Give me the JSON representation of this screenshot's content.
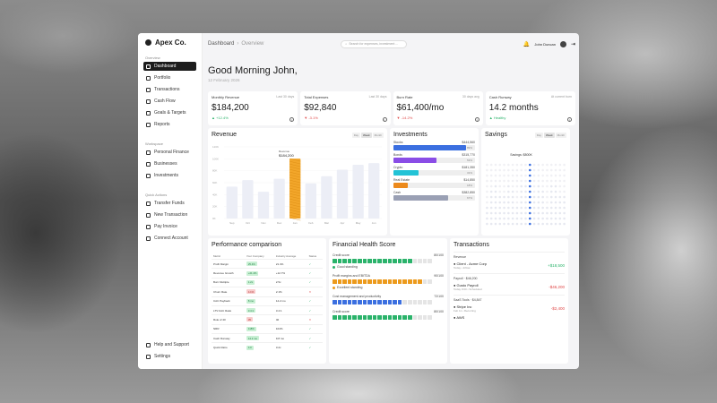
{
  "app": {
    "brand": "Apex Co."
  },
  "sidebar": {
    "overview_label": "Overview",
    "overview_items": [
      {
        "label": "Dashboard",
        "active": true
      },
      {
        "label": "Portfolio"
      },
      {
        "label": "Transactions"
      },
      {
        "label": "Cash Flow"
      },
      {
        "label": "Goals & Targets"
      },
      {
        "label": "Reports"
      }
    ],
    "workspace_label": "Workspace",
    "workspace_items": [
      {
        "label": "Personal Finance"
      },
      {
        "label": "Businesses"
      },
      {
        "label": "Investments"
      }
    ],
    "quick_label": "Quick Actions",
    "quick_items": [
      {
        "label": "Transfer Funds"
      },
      {
        "label": "New Transaction"
      },
      {
        "label": "Pay Invoice"
      },
      {
        "label": "Connect Account"
      }
    ],
    "bottom_items": [
      {
        "label": "Help and Support"
      },
      {
        "label": "Settings"
      }
    ]
  },
  "header": {
    "crumb_root": "Dashboard",
    "crumb_current": "Overview",
    "search_placeholder": "Search for expenses, investment ...",
    "user_name": "John Duncan"
  },
  "greeting": {
    "title": "Good Morning John,",
    "date": "12 February 2026"
  },
  "kpis": [
    {
      "label": "Monthly Revenue",
      "period": "Last 30 days",
      "value": "$184,200",
      "change": "+12.4%",
      "trend": "up"
    },
    {
      "label": "Total Expenses",
      "period": "Last 30 days",
      "value": "$92,840",
      "change": "-3.1%",
      "trend": "down"
    },
    {
      "label": "Burn Rate",
      "period": "30 days avg",
      "value": "$61,400/mo",
      "change": "-14.2%",
      "trend": "down"
    },
    {
      "label": "Cash Runway",
      "period": "At current burn",
      "value": "14.2 months",
      "change": "Healthy",
      "trend": "up"
    }
  ],
  "revenue": {
    "title": "Revenue",
    "toggles": [
      "Day",
      "Week",
      "Month"
    ],
    "active_toggle": "Week",
    "tooltip_label": "Revenue",
    "tooltip_value": "$184,200"
  },
  "chart_data": {
    "type": "bar",
    "categories": [
      "Sep",
      "Oct",
      "Nov",
      "Dec",
      "Jan",
      "Feb",
      "Mar",
      "Apr",
      "May",
      "Jun"
    ],
    "values": [
      98,
      118,
      82,
      122,
      184,
      108,
      130,
      150,
      165,
      170
    ],
    "highlight_index": 4,
    "ylim": [
      0,
      220
    ],
    "yticks": [
      "0K",
      "20K",
      "40K",
      "60K",
      "80K",
      "100K",
      "120K"
    ]
  },
  "investments": {
    "title": "Investments",
    "items": [
      {
        "label": "Stocks",
        "value": "$444,560",
        "pct": "89%",
        "fill": 0.89,
        "color": "#3b6fe0"
      },
      {
        "label": "Bonds",
        "value": "$315,770",
        "pct": "53%",
        "fill": 0.53,
        "color": "#8a4de6"
      },
      {
        "label": "Crypto",
        "value": "$181,350",
        "pct": "31%",
        "fill": 0.31,
        "color": "#22c3d6"
      },
      {
        "label": "Real Estate",
        "value": "$14,850",
        "pct": "18%",
        "fill": 0.18,
        "color": "#ec8a1c"
      },
      {
        "label": "Cash",
        "value": "$382,850",
        "pct": "67%",
        "fill": 0.67,
        "color": "#9aa0b4"
      }
    ]
  },
  "savings": {
    "title": "Savings",
    "toggles": [
      "Day",
      "Week",
      "Month"
    ],
    "tooltip_label": "Savings: $800K",
    "columns": 19,
    "highlight_column": 10
  },
  "performance": {
    "title": "Performance comparison",
    "headers": [
      "Metric",
      "Your Company",
      "Industry Average",
      "Status"
    ],
    "rows": [
      {
        "metric": "Profit Margin",
        "yours": "25.4%",
        "avg": "21.4%",
        "good": true
      },
      {
        "metric": "Revenue Growth",
        "yours": "+21.4%",
        "avg": "+12.7%",
        "good": true
      },
      {
        "metric": "Burn Multiple",
        "yours": "1.2x",
        "avg": "2.5x",
        "good": true
      },
      {
        "metric": "Churn Rate",
        "yours": "4.1%",
        "avg": "2.1%",
        "good": false
      },
      {
        "metric": "CAC Payback",
        "yours": "8 mo",
        "avg": "14.2 mo",
        "good": true
      },
      {
        "metric": "LTV:CAC Ratio",
        "yours": "3.4:1",
        "avg": "3.4:1",
        "good": true
      },
      {
        "metric": "Rule of 40",
        "yours": "35",
        "avg": "40",
        "good": false
      },
      {
        "metric": "NRR",
        "yours": "118%",
        "avg": "104%",
        "good": true
      },
      {
        "metric": "Cash Runway",
        "yours": "14.2 mo",
        "avg": "9.8 mo",
        "good": true
      },
      {
        "metric": "Quick Ratio",
        "yours": "4.0",
        "avg": "3.2x",
        "good": true
      }
    ]
  },
  "health": {
    "title": "Financial Health Score",
    "items": [
      {
        "label": "Credit score",
        "score": "80/100",
        "filled": 8,
        "color": "#2bb36b",
        "status": "Good standing"
      },
      {
        "label": "Profit margins and EBITDA",
        "score": "90/100",
        "filled": 9,
        "color": "#ec9a1c",
        "status": "Excellent standing"
      },
      {
        "label": "Cost management and productivity",
        "score": "72/100",
        "filled": 7,
        "color": "#3b6fe0",
        "status": ""
      },
      {
        "label": "Credit score",
        "score": "80/100",
        "filled": 8,
        "color": "#2bb36b",
        "status": ""
      }
    ],
    "segments": 20
  },
  "transactions": {
    "title": "Transactions",
    "groups": [
      {
        "label": "Revenue",
        "rows": [
          {
            "name": "Client - Acme Corp",
            "sub": "Today • Inflow",
            "amount": "+$18,500",
            "positive": true
          }
        ]
      },
      {
        "label": "Payroll · $46,200",
        "rows": [
          {
            "name": "Gusto Payroll",
            "sub": "Today 9:00 • Scheduled",
            "amount": "-$46,200",
            "positive": false
          }
        ]
      },
      {
        "label": "SaaS Tools · $4,847",
        "rows": [
          {
            "name": "Stripe Inc",
            "sub": "Feb 11 • Recurring",
            "amount": "-$2,400",
            "positive": false
          },
          {
            "name": "AWS",
            "sub": "",
            "amount": "",
            "positive": false
          }
        ]
      }
    ]
  }
}
